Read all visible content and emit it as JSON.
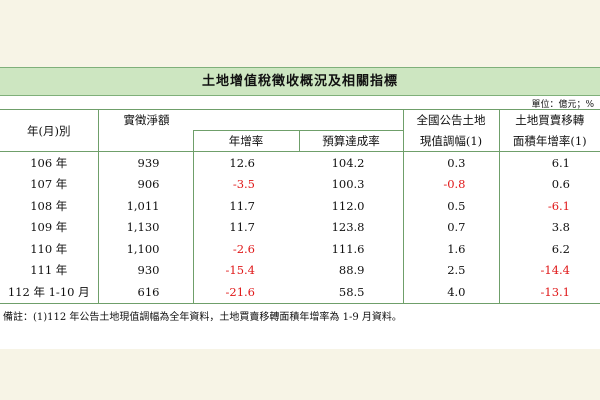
{
  "title": "土地增值稅徵收概況及相關指標",
  "unit": "單位：億元；%",
  "headers": {
    "year": "年(月)別",
    "net_tax": "實徵淨額",
    "growth": "年增率",
    "budget": "預算達成率",
    "land_value_line1": "全國公告土地",
    "land_value_line2": "現值調幅(1)",
    "area_line1": "土地買賣移轉",
    "area_line2": "面積年增率(1)"
  },
  "rows": [
    {
      "year": "106 年",
      "net": "939",
      "growth": "12.6",
      "budget": "104.2",
      "land": "0.3",
      "area": "6.1"
    },
    {
      "year": "107 年",
      "net": "906",
      "growth": "-3.5",
      "budget": "100.3",
      "land": "-0.8",
      "area": "0.6"
    },
    {
      "year": "108 年",
      "net": "1,011",
      "growth": "11.7",
      "budget": "112.0",
      "land": "0.5",
      "area": "-6.1"
    },
    {
      "year": "109 年",
      "net": "1,130",
      "growth": "11.7",
      "budget": "123.8",
      "land": "0.7",
      "area": "3.8"
    },
    {
      "year": "110 年",
      "net": "1,100",
      "growth": "-2.6",
      "budget": "111.6",
      "land": "1.6",
      "area": "6.2"
    },
    {
      "year": "111 年",
      "net": "930",
      "growth": "-15.4",
      "budget": "88.9",
      "land": "2.5",
      "area": "-14.4"
    },
    {
      "year": "112 年 1-10 月",
      "net": "616",
      "growth": "-21.6",
      "budget": "58.5",
      "land": "4.0",
      "area": "-13.1"
    }
  ],
  "note": "備註：(1)112 年公告土地現值調幅為全年資料，土地買賣移轉面積年增率為 1-9 月資料。",
  "colors": {
    "negative": "#e0191a",
    "title_band": "#cde6c1",
    "rule": "#6f9f6a"
  }
}
